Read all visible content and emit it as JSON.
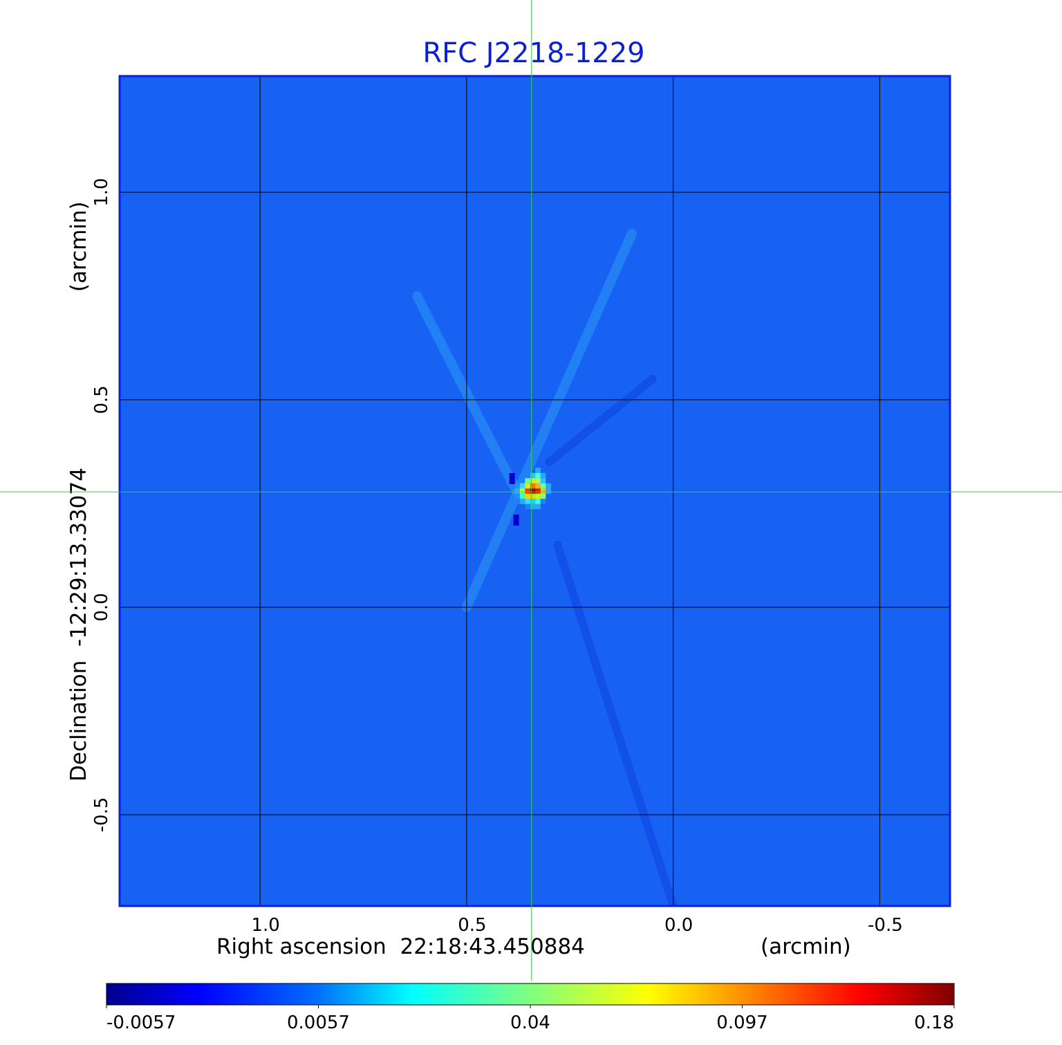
{
  "chart_data": {
    "type": "heatmap",
    "title": "RFC J2218-1229",
    "xlabel": "Right ascension  22:18:43.450884",
    "xunit": "(arcmin)",
    "ylabel": "Declination  -12:29:13.33074",
    "yunit": "(arcmin)",
    "x_ticks": [
      "1.0",
      "0.5",
      "0.0",
      "-0.5"
    ],
    "y_ticks": [
      "1.0",
      "0.5",
      "0.0",
      "-0.5"
    ],
    "xlim": [
      1.34,
      -0.67
    ],
    "ylim": [
      -0.72,
      1.28
    ],
    "grid": true,
    "crosshair": {
      "x": 0.343,
      "y": 0.278
    },
    "colorbar": {
      "ticks": [
        "-0.0057",
        "0.0057",
        "0.04",
        "0.097",
        "0.18"
      ],
      "colormap": "jet"
    },
    "peak": {
      "x": 0.34,
      "y": 0.28,
      "value": 0.18
    },
    "background_value": 0.0,
    "features": [
      {
        "kind": "positive_streak",
        "from": [
          0.5,
          0.0
        ],
        "to": [
          0.1,
          0.9
        ]
      },
      {
        "kind": "positive_streak",
        "from": [
          0.38,
          0.28
        ],
        "to": [
          0.62,
          0.75
        ]
      },
      {
        "kind": "negative_streak",
        "from": [
          0.28,
          0.15
        ],
        "to": [
          0.0,
          -0.72
        ]
      },
      {
        "kind": "negative_streak",
        "from": [
          0.3,
          0.35
        ],
        "to": [
          0.05,
          0.55
        ]
      },
      {
        "kind": "negative_spot",
        "x": 0.38,
        "y": 0.21
      },
      {
        "kind": "negative_spot",
        "x": 0.39,
        "y": 0.31
      }
    ]
  }
}
